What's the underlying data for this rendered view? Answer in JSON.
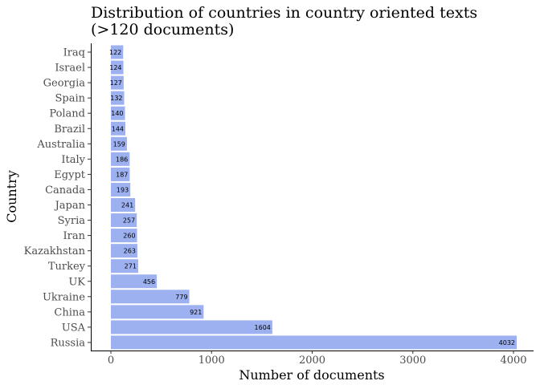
{
  "chart_data": {
    "type": "bar",
    "orientation": "horizontal",
    "title_line1": "Distribution of countries in country oriented texts",
    "title_line2": "(>120 documents)",
    "xlabel": "Number of documents",
    "ylabel": "Country",
    "xlim": [
      0,
      4032
    ],
    "xticks": [
      0,
      1000,
      2000,
      3000,
      4000
    ],
    "grid": false,
    "bar_color": "#9db0f0",
    "categories": [
      "Russia",
      "USA",
      "China",
      "Ukraine",
      "UK",
      "Turkey",
      "Kazakhstan",
      "Iran",
      "Syria",
      "Japan",
      "Canada",
      "Egypt",
      "Italy",
      "Australia",
      "Brazil",
      "Poland",
      "Spain",
      "Georgia",
      "Israel",
      "Iraq"
    ],
    "values": [
      4032,
      1604,
      921,
      779,
      456,
      271,
      263,
      260,
      257,
      241,
      193,
      187,
      186,
      159,
      144,
      140,
      132,
      127,
      124,
      122
    ]
  }
}
